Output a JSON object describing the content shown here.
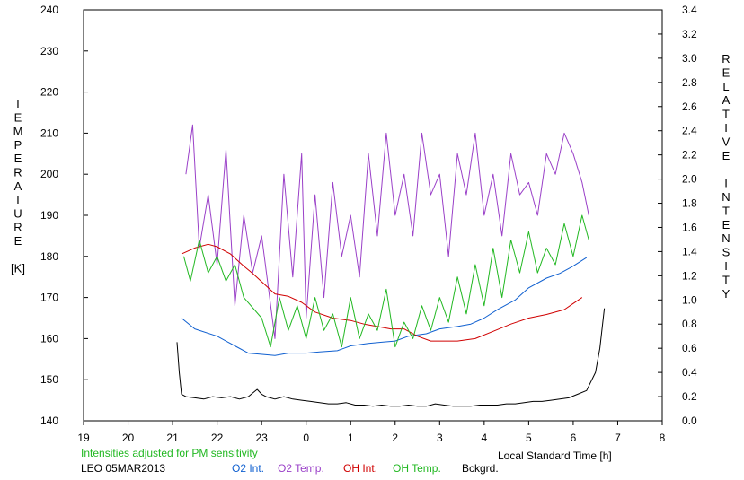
{
  "chart_data": {
    "type": "line",
    "xlabel": "Local Standard Time [h]",
    "ylabel_left_letters": [
      "T",
      "E",
      "M",
      "P",
      "E",
      "R",
      "A",
      "T",
      "U",
      "R",
      "E",
      "",
      "[K]"
    ],
    "ylabel_right_letters": [
      "R",
      "E",
      "L",
      "A",
      "T",
      "I",
      "V",
      "E",
      "",
      "I",
      "N",
      "T",
      "E",
      "N",
      "S",
      "I",
      "T",
      "Y"
    ],
    "x_ticks": [
      "19",
      "20",
      "21",
      "22",
      "23",
      "0",
      "1",
      "2",
      "3",
      "4",
      "5",
      "6",
      "7",
      "8"
    ],
    "xlim": [
      19,
      32
    ],
    "y_left_ticks": [
      "140",
      "150",
      "160",
      "170",
      "180",
      "190",
      "200",
      "210",
      "220",
      "230",
      "240"
    ],
    "y_left_lim": [
      140,
      240
    ],
    "y_right_ticks": [
      "0.0",
      "0.2",
      "0.4",
      "0.6",
      "0.8",
      "1.0",
      "1.2",
      "1.4",
      "1.6",
      "1.8",
      "2.0",
      "2.2",
      "2.4",
      "2.6",
      "2.8",
      "3.0",
      "3.2",
      "3.4"
    ],
    "y_right_lim": [
      0,
      3.4
    ],
    "note": "Intensities adjusted for PM sensitivity",
    "station_label": "LEO 05MAR2013",
    "colors": {
      "o2_int": "#1060d0",
      "o2_temp": "#9a40c8",
      "oh_int": "#d00000",
      "oh_temp": "#22b822",
      "bckgrd": "#000000",
      "note": "#22b822"
    },
    "series": [
      {
        "name": "O2 Int.",
        "axis": "right",
        "legend": "O2 Int.",
        "x": [
          21.2,
          21.5,
          22.0,
          22.4,
          22.7,
          23.3,
          23.6,
          24.0,
          24.3,
          24.7,
          25.0,
          25.4,
          25.7,
          26.0,
          26.3,
          26.7,
          27.0,
          27.4,
          27.7,
          28.0,
          28.3,
          28.7,
          29.0,
          29.4,
          29.7,
          30.0,
          30.3
        ],
        "y": [
          0.85,
          0.76,
          0.7,
          0.62,
          0.56,
          0.54,
          0.56,
          0.56,
          0.57,
          0.58,
          0.62,
          0.64,
          0.65,
          0.66,
          0.7,
          0.72,
          0.76,
          0.78,
          0.8,
          0.85,
          0.92,
          1.0,
          1.1,
          1.18,
          1.22,
          1.28,
          1.35
        ]
      },
      {
        "name": "O2 Temp.",
        "axis": "left",
        "legend": "O2 Temp.",
        "x": [
          21.3,
          21.45,
          21.6,
          21.8,
          22.0,
          22.2,
          22.4,
          22.6,
          22.8,
          23.0,
          23.3,
          23.5,
          23.7,
          23.9,
          24.0,
          24.2,
          24.4,
          24.6,
          24.8,
          25.0,
          25.2,
          25.4,
          25.6,
          25.8,
          26.0,
          26.2,
          26.4,
          26.6,
          26.8,
          27.0,
          27.2,
          27.4,
          27.6,
          27.8,
          28.0,
          28.2,
          28.4,
          28.6,
          28.8,
          29.0,
          29.2,
          29.4,
          29.6,
          29.8,
          30.0,
          30.2,
          30.35
        ],
        "y": [
          200,
          212,
          182,
          195,
          178,
          206,
          168,
          190,
          176,
          185,
          160,
          200,
          175,
          205,
          165,
          195,
          170,
          198,
          180,
          190,
          175,
          205,
          185,
          210,
          190,
          200,
          185,
          210,
          195,
          200,
          180,
          205,
          195,
          210,
          190,
          200,
          185,
          205,
          195,
          198,
          190,
          205,
          200,
          210,
          205,
          198,
          190
        ]
      },
      {
        "name": "OH Int.",
        "axis": "right",
        "legend": "OH Int.",
        "x": [
          21.2,
          21.5,
          21.8,
          22.0,
          22.3,
          22.6,
          22.8,
          23.3,
          23.6,
          23.9,
          24.2,
          24.6,
          25.0,
          25.3,
          25.6,
          25.9,
          26.2,
          26.5,
          26.8,
          27.1,
          27.4,
          27.8,
          28.2,
          28.6,
          29.0,
          29.4,
          29.8,
          30.0,
          30.2
        ],
        "y": [
          1.38,
          1.43,
          1.46,
          1.44,
          1.38,
          1.28,
          1.22,
          1.05,
          1.03,
          0.98,
          0.9,
          0.85,
          0.83,
          0.8,
          0.78,
          0.76,
          0.76,
          0.7,
          0.66,
          0.66,
          0.66,
          0.68,
          0.74,
          0.8,
          0.85,
          0.88,
          0.92,
          0.97,
          1.02
        ]
      },
      {
        "name": "OH Temp.",
        "axis": "left",
        "legend": "OH Temp.",
        "x": [
          21.25,
          21.4,
          21.6,
          21.8,
          22.0,
          22.2,
          22.4,
          22.6,
          23.0,
          23.2,
          23.4,
          23.6,
          23.8,
          24.0,
          24.2,
          24.4,
          24.6,
          24.8,
          25.0,
          25.2,
          25.4,
          25.6,
          25.8,
          26.0,
          26.2,
          26.4,
          26.6,
          26.8,
          27.0,
          27.2,
          27.4,
          27.6,
          27.8,
          28.0,
          28.2,
          28.4,
          28.6,
          28.8,
          29.0,
          29.2,
          29.4,
          29.6,
          29.8,
          30.0,
          30.2,
          30.35
        ],
        "y": [
          180,
          174,
          184,
          176,
          180,
          174,
          178,
          170,
          165,
          158,
          170,
          162,
          168,
          160,
          170,
          162,
          166,
          158,
          170,
          160,
          166,
          162,
          172,
          158,
          164,
          160,
          168,
          162,
          170,
          164,
          175,
          166,
          178,
          168,
          182,
          170,
          184,
          176,
          186,
          176,
          182,
          178,
          188,
          180,
          190,
          184
        ]
      },
      {
        "name": "Bckgrd.",
        "axis": "right",
        "legend": "Bckgrd.",
        "x": [
          21.1,
          21.15,
          21.2,
          21.3,
          21.5,
          21.7,
          21.9,
          22.1,
          22.3,
          22.5,
          22.7,
          22.9,
          23.0,
          23.1,
          23.3,
          23.5,
          23.7,
          23.9,
          24.1,
          24.3,
          24.5,
          24.7,
          24.9,
          25.1,
          25.3,
          25.5,
          25.7,
          25.9,
          26.1,
          26.3,
          26.5,
          26.7,
          26.9,
          27.1,
          27.3,
          27.5,
          27.7,
          27.9,
          28.1,
          28.3,
          28.5,
          28.7,
          28.9,
          29.1,
          29.3,
          29.5,
          29.7,
          29.9,
          30.1,
          30.3,
          30.5,
          30.6,
          30.7
        ],
        "y": [
          0.65,
          0.4,
          0.22,
          0.2,
          0.19,
          0.18,
          0.2,
          0.19,
          0.2,
          0.18,
          0.2,
          0.26,
          0.22,
          0.2,
          0.18,
          0.2,
          0.18,
          0.17,
          0.16,
          0.15,
          0.14,
          0.14,
          0.15,
          0.13,
          0.13,
          0.12,
          0.13,
          0.12,
          0.12,
          0.13,
          0.12,
          0.12,
          0.14,
          0.13,
          0.12,
          0.12,
          0.12,
          0.13,
          0.13,
          0.13,
          0.14,
          0.14,
          0.15,
          0.16,
          0.16,
          0.17,
          0.18,
          0.19,
          0.22,
          0.25,
          0.4,
          0.6,
          0.93
        ]
      }
    ]
  }
}
